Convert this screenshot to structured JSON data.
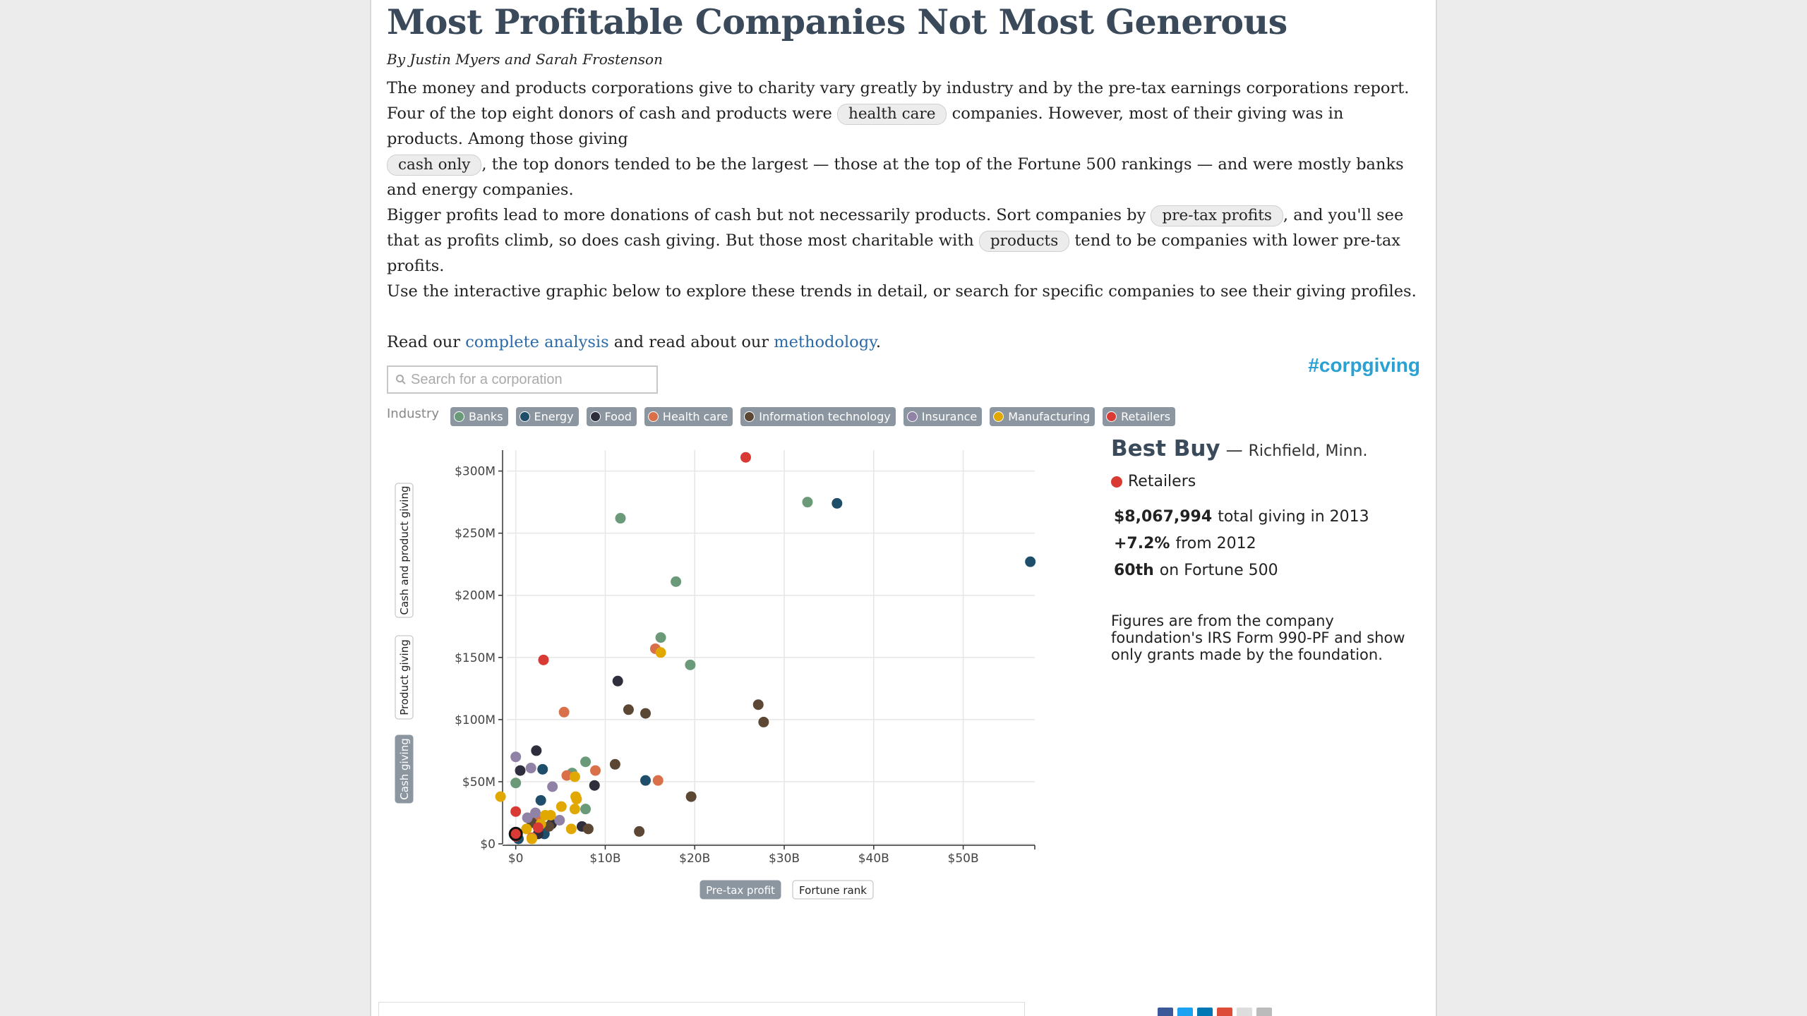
{
  "article": {
    "title": "Most Profitable Companies Not Most Generous",
    "byline": "By Justin Myers and Sarah Frostenson",
    "p1_a": "The money and products corporations give to charity vary greatly by industry and by the pre-tax earnings corporations report. Four of the top eight donors of cash and products were",
    "p1_pill1": "health care",
    "p1_b": "companies. However, most of their giving was in products. Among those giving",
    "p1_pill2": "cash only",
    "p1_c": ", the top donors tended to be the largest — those at the top of the Fortune 500 rankings — and were mostly banks and energy companies.",
    "p2_a": "Bigger profits lead to more donations of cash but not necessarily products. Sort companies by",
    "p2_pill1": "pre-tax profits",
    "p2_b": ", and you'll see that as profits climb, so does cash giving. But those most charitable with",
    "p2_pill2": "products",
    "p2_c": "tend to be companies with lower pre-tax profits.",
    "p3": "Use the interactive graphic below to explore these trends in detail, or search for specific companies to see their giving profiles.",
    "p4_a": "Read our",
    "p4_link1": "complete analysis",
    "p4_b": "and read about our",
    "p4_link2": "methodology",
    "p4_c": "."
  },
  "search": {
    "placeholder": "Search for a corporation"
  },
  "hashtag": "#corpgiving",
  "industry": {
    "label": "Industry",
    "items": [
      {
        "label": "Banks",
        "color": "#6a9a78"
      },
      {
        "label": "Energy",
        "color": "#1f4e6b"
      },
      {
        "label": "Food",
        "color": "#2e2e3c"
      },
      {
        "label": "Health care",
        "color": "#d9704a"
      },
      {
        "label": "Information technology",
        "color": "#5c4634"
      },
      {
        "label": "Insurance",
        "color": "#8f82a6"
      },
      {
        "label": "Manufacturing",
        "color": "#e0a800"
      },
      {
        "label": "Retailers",
        "color": "#d93a33"
      }
    ]
  },
  "chart_data": {
    "type": "scatter",
    "xlabel": "",
    "ylabel": "",
    "xlim": [
      -1,
      58
    ],
    "ylim": [
      0,
      310
    ],
    "x_unit": "billion USD pre-tax profit",
    "y_unit": "million USD giving",
    "x_ticks": [
      {
        "value": 0,
        "label": "$0"
      },
      {
        "value": 10,
        "label": "$10B"
      },
      {
        "value": 20,
        "label": "$20B"
      },
      {
        "value": 30,
        "label": "$30B"
      },
      {
        "value": 40,
        "label": "$40B"
      },
      {
        "value": 50,
        "label": "$50B"
      }
    ],
    "y_ticks": [
      {
        "value": 0,
        "label": "$0"
      },
      {
        "value": 50,
        "label": "$50M"
      },
      {
        "value": 100,
        "label": "$100M"
      },
      {
        "value": 150,
        "label": "$150M"
      },
      {
        "value": 200,
        "label": "$200M"
      },
      {
        "value": 250,
        "label": "$250M"
      },
      {
        "value": 300,
        "label": "$300M"
      }
    ],
    "y_toggles": [
      {
        "label": "Cash and product giving",
        "active": false
      },
      {
        "label": "Product giving",
        "active": false
      },
      {
        "label": "Cash giving",
        "active": true
      }
    ],
    "x_toggles": [
      {
        "label": "Pre-tax profit",
        "active": true
      },
      {
        "label": "Fortune rank",
        "active": false
      }
    ],
    "grid": true,
    "series": [
      {
        "industry": "Banks",
        "points": [
          [
            11.7,
            262
          ],
          [
            32.6,
            275
          ],
          [
            17.9,
            211
          ],
          [
            16.2,
            166
          ],
          [
            19.5,
            144
          ],
          [
            7.8,
            66
          ],
          [
            0,
            49
          ],
          [
            7.8,
            28
          ],
          [
            6.3,
            57
          ]
        ]
      },
      {
        "industry": "Energy",
        "points": [
          [
            35.9,
            274
          ],
          [
            57.5,
            227
          ],
          [
            14.5,
            51
          ],
          [
            3,
            60
          ],
          [
            2.8,
            35
          ],
          [
            3.2,
            8
          ],
          [
            0.3,
            4
          ]
        ]
      },
      {
        "industry": "Food",
        "points": [
          [
            11.4,
            131
          ],
          [
            2.3,
            75
          ],
          [
            0.5,
            59
          ],
          [
            8.8,
            47
          ],
          [
            4,
            16
          ],
          [
            7.4,
            14
          ],
          [
            2.5,
            8
          ]
        ]
      },
      {
        "industry": "Health care",
        "points": [
          [
            5.4,
            106
          ],
          [
            15.6,
            157
          ],
          [
            15.9,
            51
          ],
          [
            8.9,
            59
          ],
          [
            5.7,
            55
          ],
          [
            1.8,
            5
          ],
          [
            2.6,
            19
          ]
        ]
      },
      {
        "industry": "Information technology",
        "points": [
          [
            27.1,
            112
          ],
          [
            27.7,
            98
          ],
          [
            12.6,
            108
          ],
          [
            14.5,
            105
          ],
          [
            11.1,
            64
          ],
          [
            19.6,
            38
          ],
          [
            13.8,
            10
          ],
          [
            8.1,
            12
          ],
          [
            1.8,
            17
          ],
          [
            3.7,
            14
          ]
        ]
      },
      {
        "industry": "Insurance",
        "points": [
          [
            0,
            70
          ],
          [
            1.7,
            61
          ],
          [
            4.1,
            46
          ],
          [
            2.2,
            25
          ],
          [
            4.9,
            19
          ],
          [
            1.3,
            21
          ]
        ]
      },
      {
        "industry": "Manufacturing",
        "points": [
          [
            16.2,
            154
          ],
          [
            -1.7,
            38
          ],
          [
            6.6,
            54
          ],
          [
            6.7,
            38
          ],
          [
            6.8,
            36
          ],
          [
            5.1,
            30
          ],
          [
            3.9,
            23
          ],
          [
            6.6,
            28
          ],
          [
            2.8,
            16
          ],
          [
            6.2,
            12
          ],
          [
            3.3,
            23
          ],
          [
            1.2,
            12
          ],
          [
            1.8,
            4
          ]
        ]
      },
      {
        "industry": "Retailers",
        "points": [
          [
            25.7,
            311
          ],
          [
            3.1,
            148
          ],
          [
            0,
            26
          ],
          [
            2.5,
            13
          ],
          [
            0,
            8
          ],
          [
            0,
            6
          ]
        ]
      }
    ]
  },
  "info": {
    "name": "Best Buy",
    "sep": "—",
    "city": "Richfield, Minn.",
    "industry": "Retailers",
    "stat1_value": "$8,067,994",
    "stat1_text": "total giving in 2013",
    "stat2_value": "+7.2%",
    "stat2_text": "from 2012",
    "stat3_value": "60th",
    "stat3_text": "on Fortune 500",
    "note": "Figures are from the company foundation's IRS Form 990-PF and show only grants made by the foundation."
  },
  "icons": {
    "search": "magnifier-icon",
    "share": [
      "facebook-icon",
      "twitter-icon",
      "linkedin-icon",
      "google-plus-icon",
      "email-icon",
      "print-icon"
    ]
  }
}
